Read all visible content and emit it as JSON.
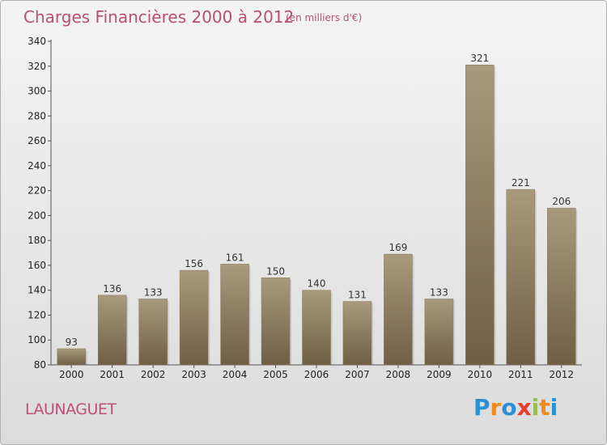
{
  "header": {
    "title": "Charges Financières 2000 à 2012",
    "subtitle": "(en milliers d'€)"
  },
  "footer": {
    "commune": "LAUNAGUET",
    "logo": "Proxiti",
    "logo_letters": [
      {
        "ch": "P",
        "color": "#2b8fd6"
      },
      {
        "ch": "r",
        "color": "#f08a1c"
      },
      {
        "ch": "o",
        "color": "#2b8fd6"
      },
      {
        "ch": "x",
        "color": "#e63c2f"
      },
      {
        "ch": "i",
        "color": "#8dc63f"
      },
      {
        "ch": "t",
        "color": "#f08a1c"
      },
      {
        "ch": "i",
        "color": "#2b8fd6"
      }
    ]
  },
  "colors": {
    "bar_top": "#a89a7c",
    "bar_bottom": "#6e5f45",
    "title": "#b8506f"
  },
  "chart_data": {
    "type": "bar",
    "categories": [
      "2000",
      "2001",
      "2002",
      "2003",
      "2004",
      "2005",
      "2006",
      "2007",
      "2008",
      "2009",
      "2010",
      "2011",
      "2012"
    ],
    "values": [
      93,
      136,
      133,
      156,
      161,
      150,
      140,
      131,
      169,
      133,
      321,
      221,
      206
    ],
    "title": "Charges Financières 2000 à 2012",
    "subtitle": "(en milliers d'€)",
    "ylim": [
      80,
      340
    ],
    "yticks": [
      80,
      100,
      120,
      140,
      160,
      180,
      200,
      220,
      240,
      260,
      280,
      300,
      320,
      340
    ],
    "grid": false,
    "data_labels": true
  }
}
